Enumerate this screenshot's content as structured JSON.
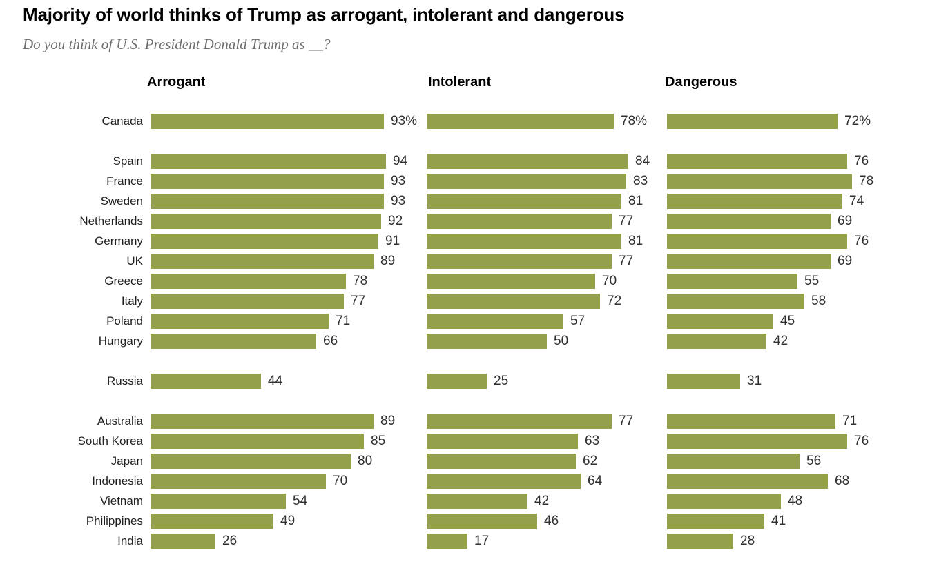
{
  "chart_data": {
    "type": "bar",
    "title": "Majority of world thinks of Trump as arrogant, intolerant and dangerous",
    "subtitle": "Do you think of U.S. President Donald Trump as __?",
    "panels": [
      "Arrogant",
      "Intolerant",
      "Dangerous"
    ],
    "value_unit": "%",
    "percent_sign_on_first_row": true,
    "bar_color": "#94A04A",
    "xlim": [
      0,
      100
    ],
    "grid": false,
    "legend_position": "none",
    "categories": [
      "Canada",
      "Spain",
      "France",
      "Sweden",
      "Netherlands",
      "Germany",
      "UK",
      "Greece",
      "Italy",
      "Poland",
      "Hungary",
      "Russia",
      "Australia",
      "South Korea",
      "Japan",
      "Indonesia",
      "Vietnam",
      "Philippines",
      "India"
    ],
    "group_sizes": [
      1,
      10,
      1,
      7
    ],
    "series": [
      {
        "name": "Arrogant",
        "values": [
          93,
          94,
          93,
          93,
          92,
          91,
          89,
          78,
          77,
          71,
          66,
          44,
          89,
          85,
          80,
          70,
          54,
          49,
          26
        ]
      },
      {
        "name": "Intolerant",
        "values": [
          78,
          84,
          83,
          81,
          77,
          81,
          77,
          70,
          72,
          57,
          50,
          25,
          77,
          63,
          62,
          64,
          42,
          46,
          17
        ]
      },
      {
        "name": "Dangerous",
        "values": [
          72,
          76,
          78,
          74,
          69,
          76,
          69,
          55,
          58,
          45,
          42,
          31,
          71,
          76,
          56,
          68,
          48,
          41,
          28
        ]
      }
    ]
  }
}
